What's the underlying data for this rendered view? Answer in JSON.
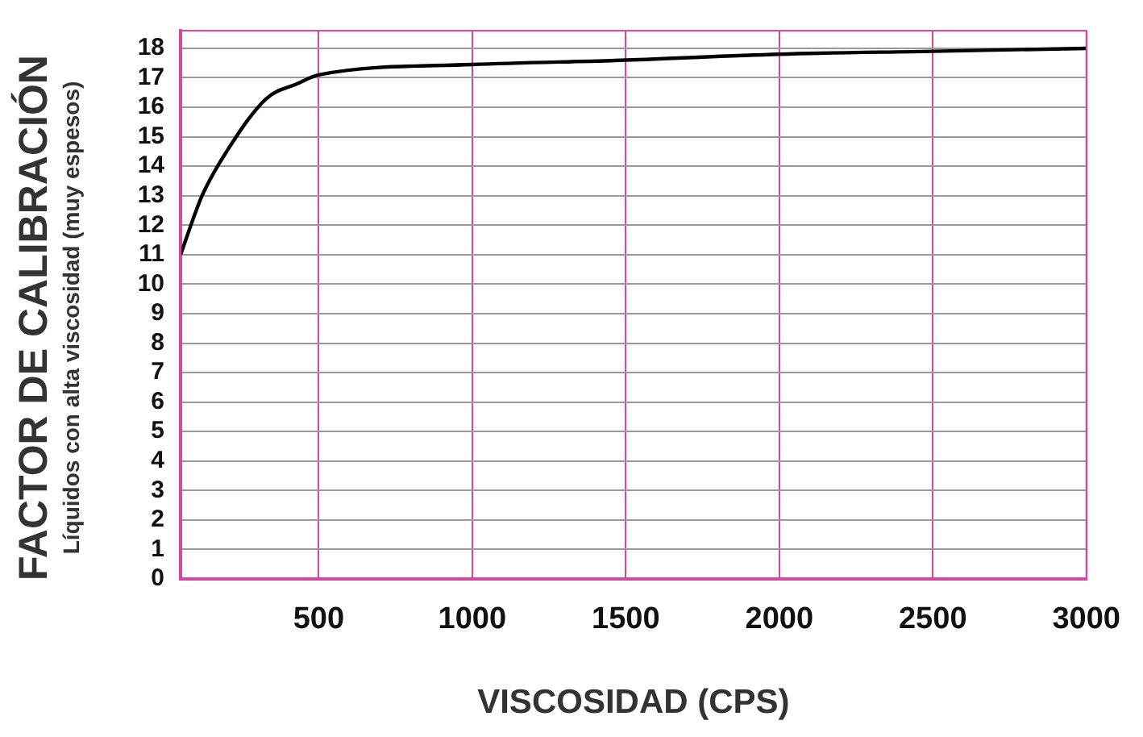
{
  "chart_data": {
    "type": "line",
    "xlabel": "VISCOSIDAD (CPS)",
    "ylabel": "FACTOR DE CALIBRACIÓN\nLíquidos con alta viscosidad (muy espesos)",
    "x": [
      50,
      120,
      200,
      330,
      430,
      500,
      1000,
      1500,
      2000,
      2500,
      3000
    ],
    "series": [
      {
        "color": "#000000",
        "values": [
          11,
          13,
          14.5,
          16.3,
          16.8,
          17.1,
          17.45,
          17.6,
          17.8,
          17.9,
          18
        ]
      }
    ],
    "xlim": [
      50,
      3000
    ],
    "xticks": [
      500,
      1000,
      1500,
      2000,
      2500,
      3000
    ],
    "ylim": [
      0,
      18.6
    ],
    "yticks": [
      0,
      1,
      2,
      3,
      4,
      5,
      6,
      7,
      8,
      9,
      10,
      11,
      12,
      13,
      14,
      15,
      16,
      17,
      18
    ],
    "grid": true,
    "legend": false,
    "marker": "none",
    "line_style": "solid"
  }
}
